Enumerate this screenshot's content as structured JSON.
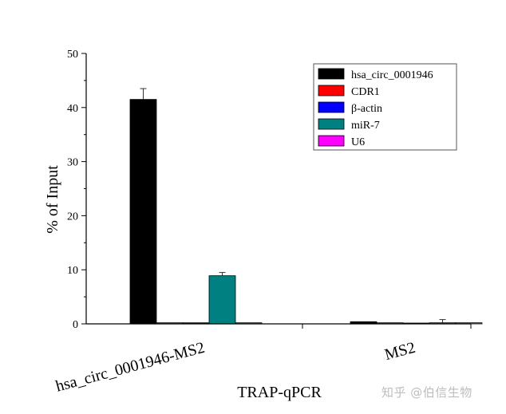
{
  "chart_data": {
    "type": "bar",
    "xlabel": "TRAP-qPCR",
    "ylabel": "% of Input",
    "ylim": [
      0,
      50
    ],
    "yticks": [
      0,
      10,
      20,
      30,
      40,
      50
    ],
    "categories": [
      "hsa_circ_0001946-MS2",
      "MS2"
    ],
    "legend_position": "top-right",
    "series": [
      {
        "name": "hsa_circ_0001946",
        "color": "#000000",
        "values": [
          41.5,
          0.4
        ],
        "errors": [
          2.0,
          0
        ]
      },
      {
        "name": "CDR1",
        "color": "#ff0000",
        "values": [
          0.2,
          0.2
        ],
        "errors": [
          0,
          0
        ]
      },
      {
        "name": "β-actin",
        "color": "#0000ff",
        "values": [
          0.2,
          0.15
        ],
        "errors": [
          0,
          0
        ]
      },
      {
        "name": "miR-7",
        "color": "#008080",
        "values": [
          8.9,
          0.2
        ],
        "errors": [
          0.6,
          0.6
        ]
      },
      {
        "name": "U6",
        "color": "#ff00ff",
        "values": [
          0.2,
          0.2
        ],
        "errors": [
          0,
          0
        ]
      }
    ]
  },
  "watermark": "知乎 @伯信生物"
}
